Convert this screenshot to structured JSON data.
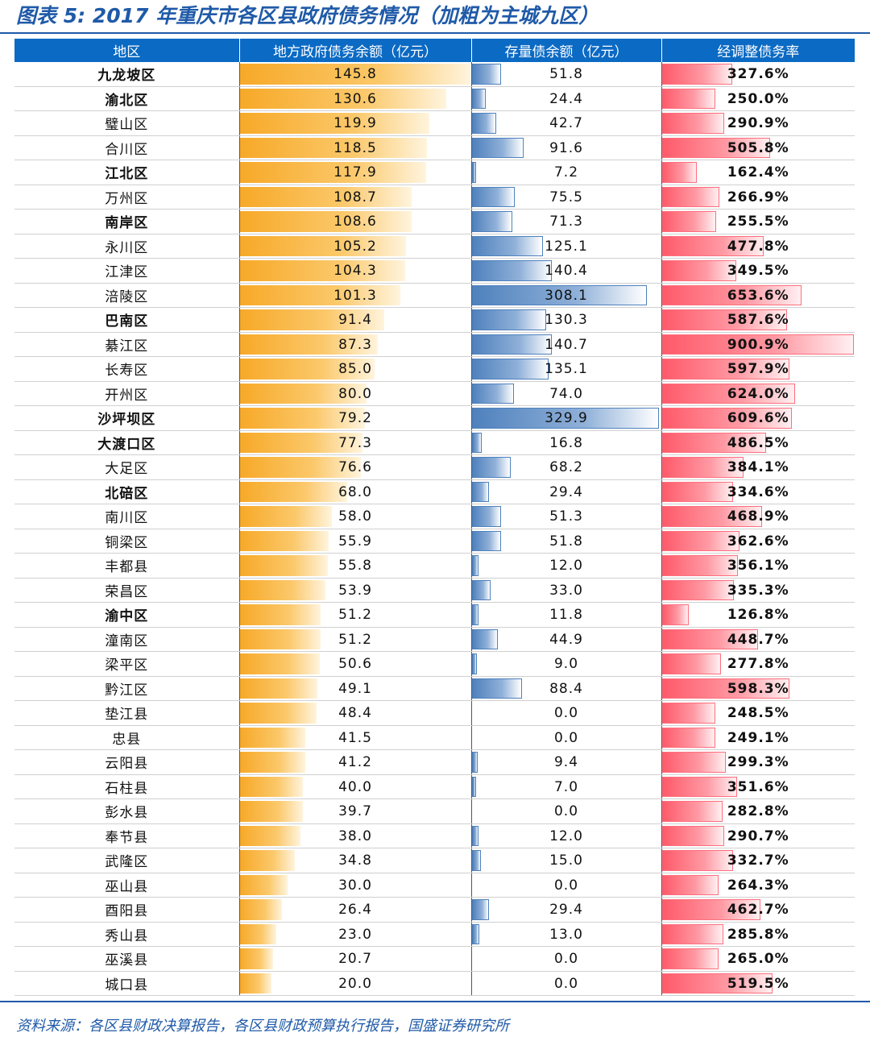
{
  "title": "图表 5: 2017 年重庆市各区县政府债务情况（加粗为主城九区）",
  "columns": [
    "地区",
    "地方政府债务余额（亿元）",
    "存量债余额（亿元）",
    "经调整债务率"
  ],
  "rows": [
    {
      "region": "九龙坡区",
      "bold": true,
      "debt": "145.8",
      "stock": "51.8",
      "ratio": "327.6%"
    },
    {
      "region": "渝北区",
      "bold": true,
      "debt": "130.6",
      "stock": "24.4",
      "ratio": "250.0%"
    },
    {
      "region": "璧山区",
      "bold": false,
      "debt": "119.9",
      "stock": "42.7",
      "ratio": "290.9%"
    },
    {
      "region": "合川区",
      "bold": false,
      "debt": "118.5",
      "stock": "91.6",
      "ratio": "505.8%"
    },
    {
      "region": "江北区",
      "bold": true,
      "debt": "117.9",
      "stock": "7.2",
      "ratio": "162.4%"
    },
    {
      "region": "万州区",
      "bold": false,
      "debt": "108.7",
      "stock": "75.5",
      "ratio": "266.9%"
    },
    {
      "region": "南岸区",
      "bold": true,
      "debt": "108.6",
      "stock": "71.3",
      "ratio": "255.5%"
    },
    {
      "region": "永川区",
      "bold": false,
      "debt": "105.2",
      "stock": "125.1",
      "ratio": "477.8%"
    },
    {
      "region": "江津区",
      "bold": false,
      "debt": "104.3",
      "stock": "140.4",
      "ratio": "349.5%"
    },
    {
      "region": "涪陵区",
      "bold": false,
      "debt": "101.3",
      "stock": "308.1",
      "ratio": "653.6%"
    },
    {
      "region": "巴南区",
      "bold": true,
      "debt": "91.4",
      "stock": "130.3",
      "ratio": "587.6%"
    },
    {
      "region": "綦江区",
      "bold": false,
      "debt": "87.3",
      "stock": "140.7",
      "ratio": "900.9%"
    },
    {
      "region": "长寿区",
      "bold": false,
      "debt": "85.0",
      "stock": "135.1",
      "ratio": "597.9%"
    },
    {
      "region": "开州区",
      "bold": false,
      "debt": "80.0",
      "stock": "74.0",
      "ratio": "624.0%"
    },
    {
      "region": "沙坪坝区",
      "bold": true,
      "debt": "79.2",
      "stock": "329.9",
      "ratio": "609.6%"
    },
    {
      "region": "大渡口区",
      "bold": true,
      "debt": "77.3",
      "stock": "16.8",
      "ratio": "486.5%"
    },
    {
      "region": "大足区",
      "bold": false,
      "debt": "76.6",
      "stock": "68.2",
      "ratio": "384.1%"
    },
    {
      "region": "北碚区",
      "bold": true,
      "debt": "68.0",
      "stock": "29.4",
      "ratio": "334.6%"
    },
    {
      "region": "南川区",
      "bold": false,
      "debt": "58.0",
      "stock": "51.3",
      "ratio": "468.9%"
    },
    {
      "region": "铜梁区",
      "bold": false,
      "debt": "55.9",
      "stock": "51.8",
      "ratio": "362.6%"
    },
    {
      "region": "丰都县",
      "bold": false,
      "debt": "55.8",
      "stock": "12.0",
      "ratio": "356.1%"
    },
    {
      "region": "荣昌区",
      "bold": false,
      "debt": "53.9",
      "stock": "33.0",
      "ratio": "335.3%"
    },
    {
      "region": "渝中区",
      "bold": true,
      "debt": "51.2",
      "stock": "11.8",
      "ratio": "126.8%"
    },
    {
      "region": "潼南区",
      "bold": false,
      "debt": "51.2",
      "stock": "44.9",
      "ratio": "448.7%"
    },
    {
      "region": "梁平区",
      "bold": false,
      "debt": "50.6",
      "stock": "9.0",
      "ratio": "277.8%"
    },
    {
      "region": "黔江区",
      "bold": false,
      "debt": "49.1",
      "stock": "88.4",
      "ratio": "598.3%"
    },
    {
      "region": "垫江县",
      "bold": false,
      "debt": "48.4",
      "stock": "0.0",
      "ratio": "248.5%"
    },
    {
      "region": "忠县",
      "bold": false,
      "debt": "41.5",
      "stock": "0.0",
      "ratio": "249.1%"
    },
    {
      "region": "云阳县",
      "bold": false,
      "debt": "41.2",
      "stock": "9.4",
      "ratio": "299.3%"
    },
    {
      "region": "石柱县",
      "bold": false,
      "debt": "40.0",
      "stock": "7.0",
      "ratio": "351.6%"
    },
    {
      "region": "彭水县",
      "bold": false,
      "debt": "39.7",
      "stock": "0.0",
      "ratio": "282.8%"
    },
    {
      "region": "奉节县",
      "bold": false,
      "debt": "38.0",
      "stock": "12.0",
      "ratio": "290.7%"
    },
    {
      "region": "武隆区",
      "bold": false,
      "debt": "34.8",
      "stock": "15.0",
      "ratio": "332.7%"
    },
    {
      "region": "巫山县",
      "bold": false,
      "debt": "30.0",
      "stock": "0.0",
      "ratio": "264.3%"
    },
    {
      "region": "酉阳县",
      "bold": false,
      "debt": "26.4",
      "stock": "29.4",
      "ratio": "462.7%"
    },
    {
      "region": "秀山县",
      "bold": false,
      "debt": "23.0",
      "stock": "13.0",
      "ratio": "285.8%"
    },
    {
      "region": "巫溪县",
      "bold": false,
      "debt": "20.7",
      "stock": "0.0",
      "ratio": "265.0%"
    },
    {
      "region": "城口县",
      "bold": false,
      "debt": "20.0",
      "stock": "0.0",
      "ratio": "519.5%"
    }
  ],
  "source": "资料来源：各区县财政决算报告，各区县财政预算执行报告，国盛证券研究所",
  "colors": {
    "header_bg": "#0b6ac4",
    "title": "#1f5aa8",
    "debt_bar": "#f7a928",
    "stock_bar": "#4f81bd",
    "ratio_bar": "#ff5a6a"
  }
}
